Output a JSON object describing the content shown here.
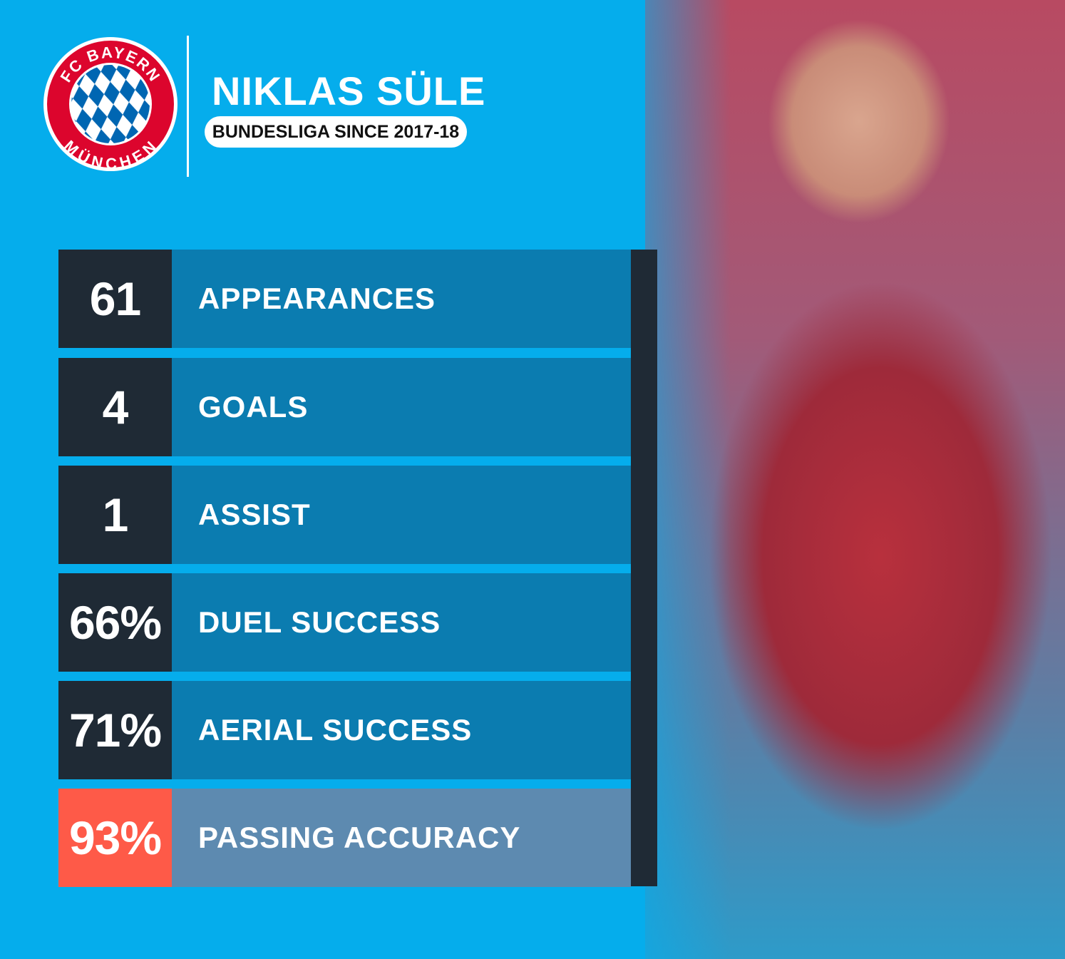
{
  "logo": {
    "text_top": "FC BAYERN",
    "text_bottom": "MÜNCHEN",
    "colors": {
      "red": "#dc052d",
      "blue": "#0066b2"
    }
  },
  "header": {
    "player_name": "NIKLAS SÜLE",
    "subtitle": "BUNDESLIGA SINCE 2017-18"
  },
  "stats": [
    {
      "value": "61",
      "label": "APPEARANCES"
    },
    {
      "value": "4",
      "label": "GOALS"
    },
    {
      "value": "1",
      "label": "ASSIST"
    },
    {
      "value": "66%",
      "label": "DUEL SUCCESS"
    },
    {
      "value": "71%",
      "label": "AERIAL SUCCESS"
    },
    {
      "value": "93%",
      "label": "PASSING ACCURACY",
      "highlight": true
    }
  ],
  "colors": {
    "background": "#05adec",
    "number_box": "#1f2a35",
    "label_box": "#0b7cb0",
    "highlight_number": "#fe5a48",
    "highlight_label": "#5d8ab0"
  }
}
